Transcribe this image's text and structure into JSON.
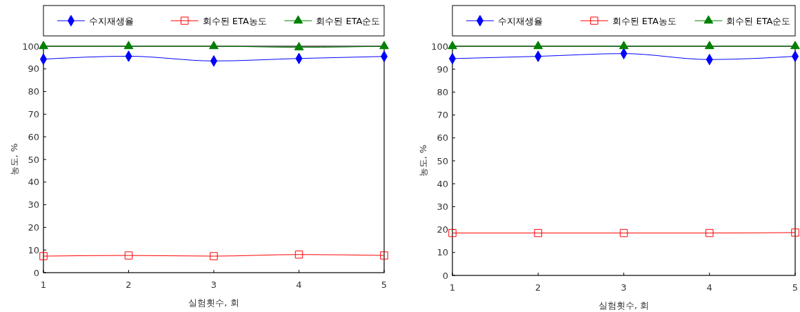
{
  "chart_data": [
    {
      "type": "line",
      "xlabel": "실험횟수, 회",
      "ylabel": "농도, %",
      "x": [
        1,
        2,
        3,
        4,
        5
      ],
      "xlim": [
        1,
        5
      ],
      "xticks": [
        1,
        2,
        3,
        4,
        5
      ],
      "ylim": [
        0,
        100
      ],
      "yticks": [
        0,
        10,
        20,
        30,
        40,
        50,
        60,
        70,
        80,
        90,
        100
      ],
      "legend": "top",
      "grid": false,
      "series": [
        {
          "name": "수지재생율",
          "color": "#0000ff",
          "marker": "diamond",
          "values": [
            94.3,
            95.6,
            93.5,
            94.6,
            95.5
          ]
        },
        {
          "name": "회수된 ETA농도",
          "color": "#ff0000",
          "marker": "square",
          "values": [
            7.3,
            7.6,
            7.3,
            8.0,
            7.6
          ]
        },
        {
          "name": "회수된 ETA순도",
          "color": "#008000",
          "marker": "triangle",
          "values": [
            100,
            100,
            100,
            99.5,
            100
          ]
        }
      ]
    },
    {
      "type": "line",
      "xlabel": "실험횟수, 회",
      "ylabel": "농도, %",
      "x": [
        1,
        2,
        3,
        4,
        5
      ],
      "xlim": [
        1,
        5
      ],
      "xticks": [
        1,
        2,
        3,
        4,
        5
      ],
      "ylim": [
        0,
        100
      ],
      "yticks": [
        0,
        10,
        20,
        30,
        40,
        50,
        60,
        70,
        80,
        90,
        100
      ],
      "legend": "top",
      "grid": false,
      "series": [
        {
          "name": "수지재생율",
          "color": "#0000ff",
          "marker": "diamond",
          "values": [
            94.6,
            95.6,
            96.8,
            94.2,
            95.6
          ]
        },
        {
          "name": "회수된 ETA농도",
          "color": "#ff0000",
          "marker": "square",
          "values": [
            18.5,
            18.5,
            18.5,
            18.5,
            18.7
          ]
        },
        {
          "name": "회수된 ETA순도",
          "color": "#008000",
          "marker": "triangle",
          "values": [
            100,
            100,
            100,
            100,
            100
          ]
        }
      ]
    }
  ]
}
